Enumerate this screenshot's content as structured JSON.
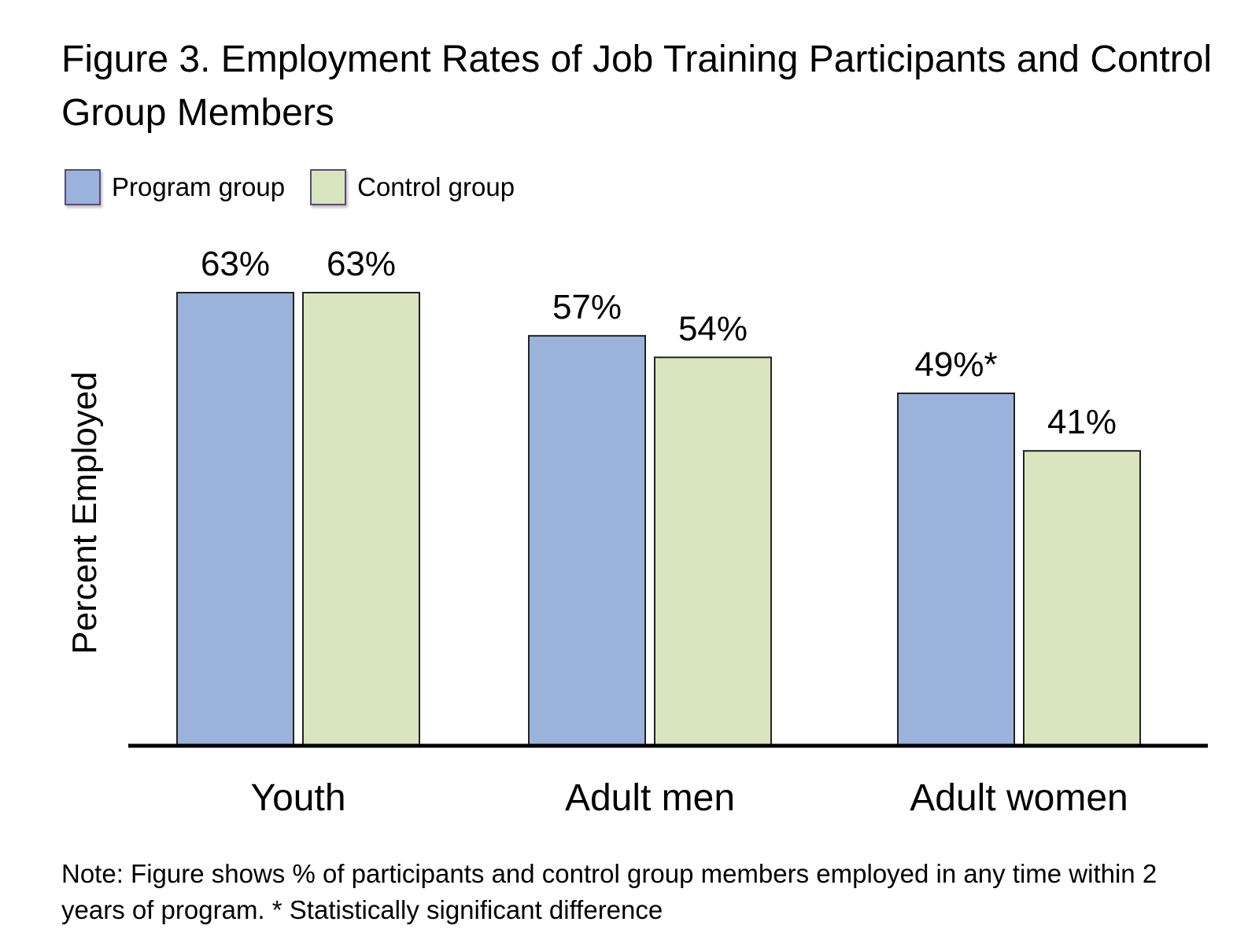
{
  "chart_data": {
    "type": "bar",
    "title": "Figure 3. Employment Rates of Job Training Participants and Control Group Members",
    "ylabel": "Percent Employed",
    "xlabel": "",
    "categories": [
      "Youth",
      "Adult men",
      "Adult women"
    ],
    "series": [
      {
        "name": "Program group",
        "values": [
          63,
          57,
          49
        ],
        "labels": [
          "63%",
          "57%",
          "49%*"
        ],
        "color": "#9bb3da"
      },
      {
        "name": "Control group",
        "values": [
          63,
          54,
          41
        ],
        "labels": [
          "63%",
          "54%",
          "41%"
        ],
        "color": "#d9e5bf"
      }
    ],
    "ylim": [
      0,
      63
    ],
    "grid": false,
    "legend_position": "top-left",
    "note": "Note: Figure shows % of participants and control group members employed in any time within 2 years of program. * Statistically significant difference"
  }
}
